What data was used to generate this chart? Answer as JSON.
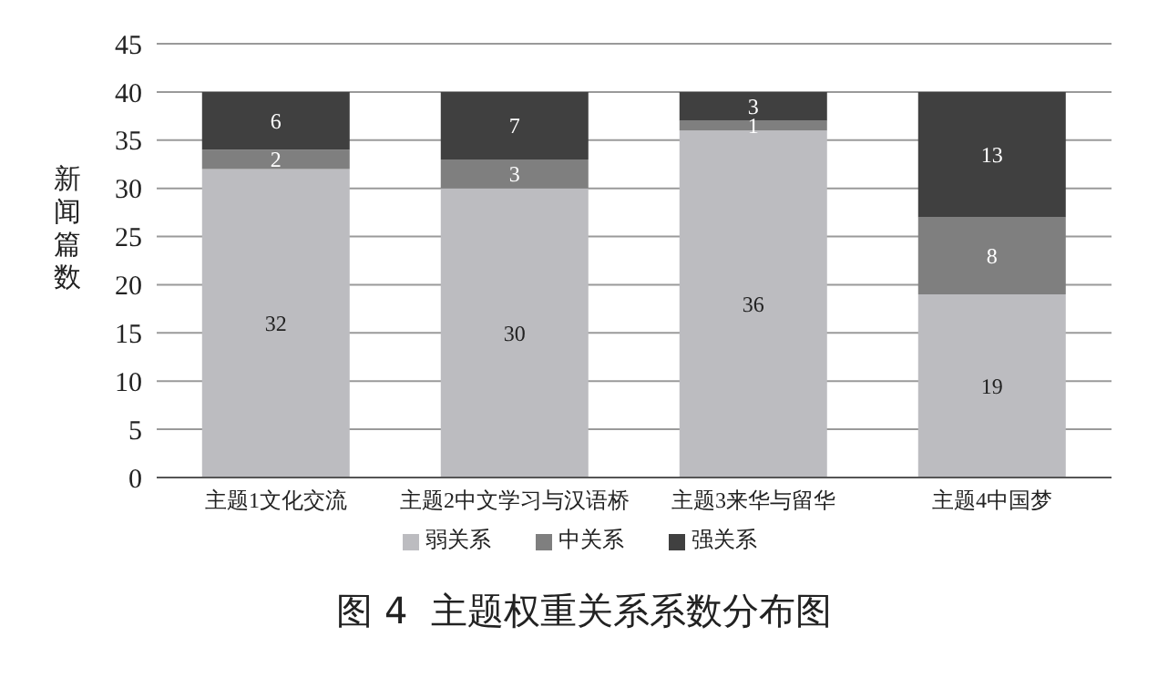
{
  "chart_data": {
    "type": "bar",
    "stacked": true,
    "title": "图 4  主题权重关系系数分布图",
    "ylabel": "新闻篇数",
    "categories": [
      "主题1文化交流",
      "主题2中文学习与汉语桥",
      "主题3来华与留华",
      "主题4中国梦"
    ],
    "series": [
      {
        "name": "弱关系",
        "color": "#bcbcc0",
        "values": [
          32,
          30,
          36,
          19
        ]
      },
      {
        "name": "中关系",
        "color": "#7f7f7f",
        "values": [
          2,
          3,
          1,
          8
        ]
      },
      {
        "name": "强关系",
        "color": "#404040",
        "values": [
          6,
          7,
          3,
          13
        ]
      }
    ],
    "ylim": [
      0,
      45
    ],
    "yticks": [
      0,
      5,
      10,
      15,
      20,
      25,
      30,
      35,
      40,
      45
    ],
    "grid": "y",
    "legend": "bottom",
    "data_labels": true
  }
}
